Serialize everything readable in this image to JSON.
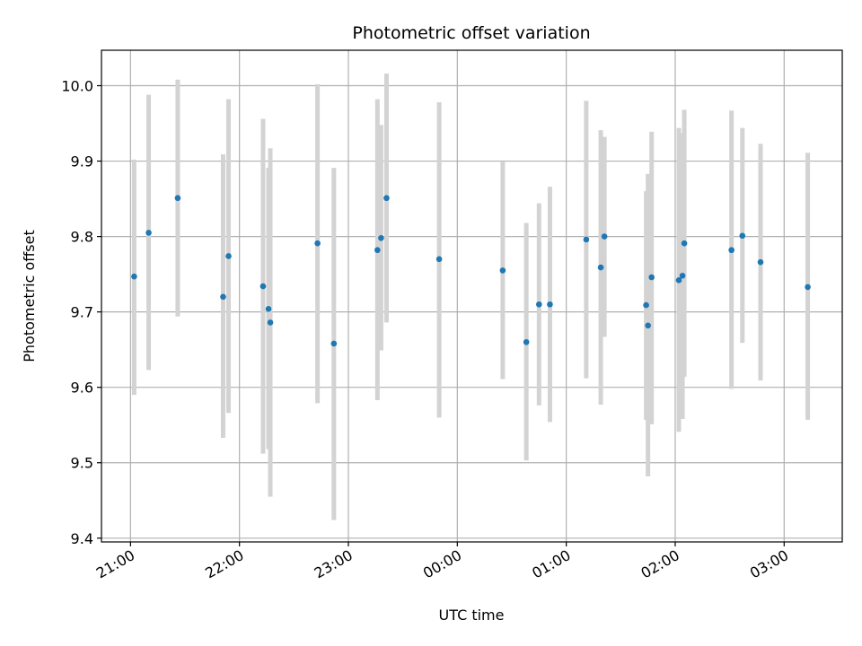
{
  "chart_data": {
    "type": "scatter",
    "title": "Photometric offset variation",
    "xlabel": "UTC time",
    "ylabel": "Photometric offset",
    "x_format": "HH:MM",
    "x_reference_date": "1970-01-01",
    "xlim": [
      "1970-01-01T20:44",
      "1970-01-02T03:32"
    ],
    "ylim": [
      9.395,
      10.047
    ],
    "grid": true,
    "legend": "none",
    "marker_color": "#1f77b4",
    "errorbar_color": "#d3d3d3",
    "x_ticks": [
      {
        "time": "1970-01-01T21:00",
        "label": "21:00"
      },
      {
        "time": "1970-01-01T22:00",
        "label": "22:00"
      },
      {
        "time": "1970-01-01T23:00",
        "label": "23:00"
      },
      {
        "time": "1970-01-02T00:00",
        "label": "00:00"
      },
      {
        "time": "1970-01-02T01:00",
        "label": "01:00"
      },
      {
        "time": "1970-01-02T02:00",
        "label": "02:00"
      },
      {
        "time": "1970-01-02T03:00",
        "label": "03:00"
      }
    ],
    "y_ticks": [
      {
        "value": 9.4,
        "label": "9.4"
      },
      {
        "value": 9.5,
        "label": "9.5"
      },
      {
        "value": 9.6,
        "label": "9.6"
      },
      {
        "value": 9.7,
        "label": "9.7"
      },
      {
        "value": 9.8,
        "label": "9.8"
      },
      {
        "value": 9.9,
        "label": "9.9"
      },
      {
        "value": 10.0,
        "label": "10.0"
      }
    ],
    "points": [
      {
        "time": "1970-01-01T21:02",
        "y": 9.747,
        "err_low": 9.59,
        "err_high": 9.902
      },
      {
        "time": "1970-01-01T21:10",
        "y": 9.805,
        "err_low": 9.623,
        "err_high": 9.988
      },
      {
        "time": "1970-01-01T21:26",
        "y": 9.851,
        "err_low": 9.694,
        "err_high": 10.008
      },
      {
        "time": "1970-01-01T21:51",
        "y": 9.72,
        "err_low": 9.533,
        "err_high": 9.909
      },
      {
        "time": "1970-01-01T21:54",
        "y": 9.774,
        "err_low": 9.566,
        "err_high": 9.982
      },
      {
        "time": "1970-01-01T22:13",
        "y": 9.734,
        "err_low": 9.512,
        "err_high": 9.956
      },
      {
        "time": "1970-01-01T22:16",
        "y": 9.704,
        "err_low": 9.518,
        "err_high": 9.891
      },
      {
        "time": "1970-01-01T22:17",
        "y": 9.686,
        "err_low": 9.455,
        "err_high": 9.917
      },
      {
        "time": "1970-01-01T22:43",
        "y": 9.791,
        "err_low": 9.579,
        "err_high": 10.002
      },
      {
        "time": "1970-01-01T22:52",
        "y": 9.658,
        "err_low": 9.424,
        "err_high": 9.891
      },
      {
        "time": "1970-01-01T23:16",
        "y": 9.782,
        "err_low": 9.583,
        "err_high": 9.982
      },
      {
        "time": "1970-01-01T23:18",
        "y": 9.798,
        "err_low": 9.649,
        "err_high": 9.948
      },
      {
        "time": "1970-01-01T23:21",
        "y": 9.851,
        "err_low": 9.686,
        "err_high": 10.016
      },
      {
        "time": "1970-01-01T23:50",
        "y": 9.77,
        "err_low": 9.56,
        "err_high": 9.978
      },
      {
        "time": "1970-01-02T00:25",
        "y": 9.755,
        "err_low": 9.611,
        "err_high": 9.899
      },
      {
        "time": "1970-01-02T00:38",
        "y": 9.66,
        "err_low": 9.503,
        "err_high": 9.818
      },
      {
        "time": "1970-01-02T00:45",
        "y": 9.71,
        "err_low": 9.576,
        "err_high": 9.844
      },
      {
        "time": "1970-01-02T00:51",
        "y": 9.71,
        "err_low": 9.554,
        "err_high": 9.866
      },
      {
        "time": "1970-01-02T01:11",
        "y": 9.796,
        "err_low": 9.612,
        "err_high": 9.98
      },
      {
        "time": "1970-01-02T01:19",
        "y": 9.759,
        "err_low": 9.577,
        "err_high": 9.941
      },
      {
        "time": "1970-01-02T01:21",
        "y": 9.8,
        "err_low": 9.667,
        "err_high": 9.932
      },
      {
        "time": "1970-01-02T01:44",
        "y": 9.709,
        "err_low": 9.557,
        "err_high": 9.86
      },
      {
        "time": "1970-01-02T01:45",
        "y": 9.682,
        "err_low": 9.482,
        "err_high": 9.883
      },
      {
        "time": "1970-01-02T01:47",
        "y": 9.746,
        "err_low": 9.551,
        "err_high": 9.939
      },
      {
        "time": "1970-01-02T02:02",
        "y": 9.742,
        "err_low": 9.541,
        "err_high": 9.944
      },
      {
        "time": "1970-01-02T02:04",
        "y": 9.748,
        "err_low": 9.558,
        "err_high": 9.937
      },
      {
        "time": "1970-01-02T02:05",
        "y": 9.791,
        "err_low": 9.614,
        "err_high": 9.968
      },
      {
        "time": "1970-01-02T02:31",
        "y": 9.782,
        "err_low": 9.598,
        "err_high": 9.967
      },
      {
        "time": "1970-01-02T02:37",
        "y": 9.801,
        "err_low": 9.659,
        "err_high": 9.944
      },
      {
        "time": "1970-01-02T02:47",
        "y": 9.766,
        "err_low": 9.609,
        "err_high": 9.923
      },
      {
        "time": "1970-01-02T03:13",
        "y": 9.733,
        "err_low": 9.557,
        "err_high": 9.911
      }
    ]
  }
}
